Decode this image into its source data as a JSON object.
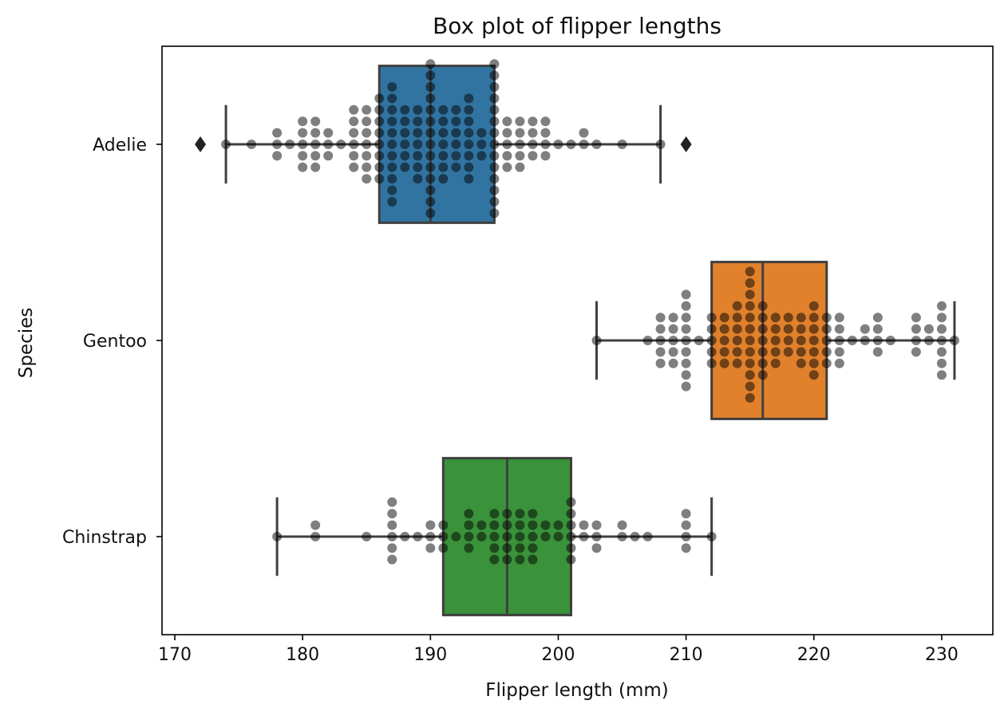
{
  "chart_data": {
    "type": "box",
    "title": "Box plot of flipper lengths",
    "xlabel": "Flipper length (mm)",
    "ylabel": "Species",
    "xlim": [
      169,
      234
    ],
    "xticks": [
      170,
      180,
      190,
      200,
      210,
      220,
      230
    ],
    "orientation": "horizontal",
    "grid": false,
    "series": [
      {
        "name": "Adelie",
        "color": "#3274a1",
        "whisker_low": 174,
        "q1": 186,
        "median": 190,
        "q3": 195,
        "whisker_high": 208,
        "outliers": [
          172,
          210
        ],
        "points": [
          174,
          176,
          178,
          178,
          178,
          179,
          180,
          180,
          180,
          180,
          180,
          181,
          181,
          181,
          181,
          181,
          182,
          182,
          182,
          183,
          184,
          184,
          184,
          184,
          184,
          184,
          185,
          185,
          185,
          185,
          185,
          185,
          185,
          186,
          186,
          186,
          186,
          186,
          186,
          186,
          186,
          187,
          187,
          187,
          187,
          187,
          187,
          187,
          187,
          187,
          187,
          187,
          188,
          188,
          188,
          188,
          188,
          188,
          189,
          189,
          189,
          189,
          189,
          189,
          189,
          190,
          190,
          190,
          190,
          190,
          190,
          190,
          190,
          190,
          190,
          190,
          190,
          190,
          190,
          191,
          191,
          191,
          191,
          191,
          191,
          191,
          192,
          192,
          192,
          192,
          192,
          192,
          193,
          193,
          193,
          193,
          193,
          193,
          193,
          193,
          194,
          194,
          194,
          195,
          195,
          195,
          195,
          195,
          195,
          195,
          195,
          195,
          195,
          195,
          195,
          195,
          195,
          196,
          196,
          196,
          196,
          196,
          197,
          197,
          197,
          197,
          197,
          198,
          198,
          198,
          198,
          199,
          199,
          199,
          199,
          200,
          201,
          202,
          202,
          203,
          205,
          208
        ]
      },
      {
        "name": "Gentoo",
        "color": "#e1812c",
        "whisker_low": 203,
        "q1": 212,
        "median": 216,
        "q3": 221,
        "whisker_high": 231,
        "outliers": [],
        "points": [
          203,
          207,
          208,
          208,
          208,
          208,
          208,
          209,
          209,
          209,
          209,
          209,
          210,
          210,
          210,
          210,
          210,
          210,
          210,
          210,
          210,
          211,
          212,
          212,
          212,
          212,
          212,
          213,
          213,
          213,
          213,
          213,
          214,
          214,
          214,
          214,
          214,
          214,
          215,
          215,
          215,
          215,
          215,
          215,
          215,
          215,
          215,
          215,
          215,
          215,
          216,
          216,
          216,
          216,
          216,
          216,
          216,
          217,
          217,
          217,
          217,
          217,
          218,
          218,
          218,
          218,
          219,
          219,
          219,
          219,
          219,
          220,
          220,
          220,
          220,
          220,
          220,
          220,
          221,
          221,
          221,
          221,
          221,
          222,
          222,
          222,
          222,
          222,
          223,
          224,
          224,
          225,
          225,
          225,
          225,
          226,
          228,
          228,
          228,
          228,
          229,
          229,
          230,
          230,
          230,
          230,
          230,
          230,
          230,
          231
        ]
      },
      {
        "name": "Chinstrap",
        "color": "#3a923a",
        "whisker_low": 178,
        "q1": 191,
        "median": 196,
        "q3": 201,
        "whisker_high": 212,
        "outliers": [],
        "points": [
          178,
          181,
          181,
          185,
          187,
          187,
          187,
          187,
          187,
          187,
          188,
          189,
          190,
          190,
          190,
          191,
          191,
          191,
          192,
          193,
          193,
          193,
          193,
          194,
          194,
          195,
          195,
          195,
          195,
          195,
          196,
          196,
          196,
          196,
          196,
          197,
          197,
          197,
          197,
          197,
          198,
          198,
          198,
          198,
          198,
          199,
          199,
          200,
          200,
          201,
          201,
          201,
          201,
          201,
          201,
          202,
          202,
          203,
          203,
          203,
          205,
          205,
          206,
          207,
          210,
          210,
          210,
          210,
          212
        ]
      }
    ]
  }
}
